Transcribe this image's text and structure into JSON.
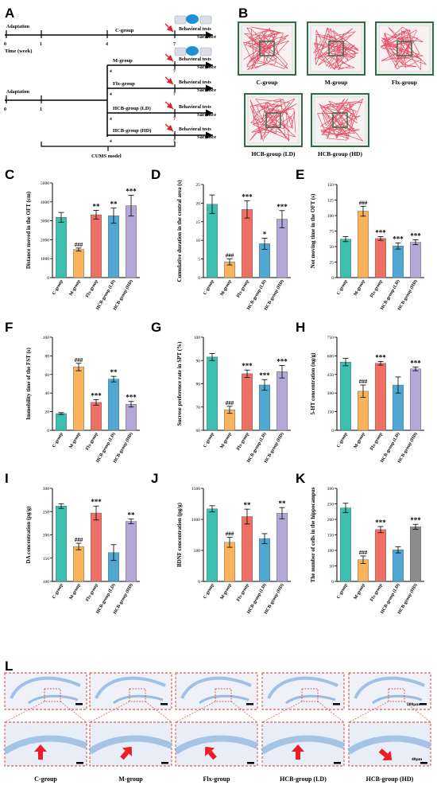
{
  "panels": {
    "A": "A",
    "B": "B",
    "C": "C",
    "D": "D",
    "E": "E",
    "F": "F",
    "G": "G",
    "H": "H",
    "I": "I",
    "J": "J",
    "K": "K",
    "L": "L"
  },
  "timeline": {
    "adaptation": "Adaptation",
    "time_label": "Time (week)",
    "ticks": {
      "t0": "0",
      "t1": "1",
      "t4": "4",
      "t7": "7"
    },
    "c_group": "C-group",
    "behavioral_tests": "Behavioral tests",
    "sacrifice": "Sacrifice",
    "groups": [
      "M-group",
      "Flx-group",
      "HCB-group (LD)",
      "HCB-group (HD)"
    ],
    "cums_model": "CUMS model"
  },
  "oft_tracks": {
    "labels": [
      "C-group",
      "M-group",
      "Flx-group",
      "HCB-group (LD)",
      "HCB-group (HD)"
    ]
  },
  "histology": {
    "labels": [
      "C-group",
      "M-group",
      "Flx-group",
      "HCB-group (LD)",
      "HCB-group (HD)"
    ],
    "scale_top": "200μm",
    "scale_bottom": "40μm"
  },
  "colors": {
    "teal": "#3cbfae",
    "orange": "#f9b35d",
    "red": "#ee6f66",
    "blue": "#4fa7d2",
    "purple": "#b3a8d8",
    "gray": "#8c8c8c",
    "track": "#e0304a",
    "frame": "#2f6b45",
    "histo": "#8fb4de"
  },
  "chart_data": [
    {
      "id": "C",
      "type": "bar",
      "ylabel": "Distance moved in the OFT (cm)",
      "ylim": [
        0,
        5000
      ],
      "yticks": [
        0,
        1000,
        2000,
        3000,
        4000,
        5000
      ],
      "categories": [
        "C-group",
        "M-group",
        "Flx-group",
        "HCB-group (LD)",
        "HCB-group (HD)"
      ],
      "values": [
        3180,
        1480,
        3320,
        3270,
        3800
      ],
      "errors": [
        260,
        80,
        230,
        400,
        550
      ],
      "annotations": [
        "",
        "###",
        "**",
        "**",
        "***"
      ],
      "colors": [
        "teal",
        "orange",
        "red",
        "blue",
        "purple"
      ]
    },
    {
      "id": "D",
      "type": "bar",
      "ylabel": "Cumulative duration in the central area (s)",
      "ylim": [
        0,
        25
      ],
      "yticks": [
        0,
        5,
        10,
        15,
        20,
        25
      ],
      "categories": [
        "C-group",
        "M-group",
        "Flx-group",
        "HCB-group (LD)",
        "HCB-group (HD)"
      ],
      "values": [
        19.7,
        4.2,
        18.3,
        9.1,
        15.7
      ],
      "errors": [
        2.5,
        0.8,
        2.3,
        1.5,
        2.3
      ],
      "annotations": [
        "",
        "###",
        "***",
        "*",
        "***"
      ],
      "colors": [
        "teal",
        "orange",
        "red",
        "blue",
        "purple"
      ]
    },
    {
      "id": "E",
      "type": "bar",
      "ylabel": "Not moving time in the OFT (s)",
      "ylim": [
        0,
        150
      ],
      "yticks": [
        0,
        25,
        50,
        75,
        100,
        125,
        150
      ],
      "categories": [
        "C-group",
        "M-group",
        "Flx-group",
        "HCB-group (LD)",
        "HCB-group (HD)"
      ],
      "values": [
        62,
        107,
        63,
        51,
        57
      ],
      "errors": [
        4,
        8,
        3,
        5,
        4
      ],
      "annotations": [
        "",
        "###",
        "***",
        "***",
        "***"
      ],
      "colors": [
        "teal",
        "orange",
        "red",
        "blue",
        "purple"
      ]
    },
    {
      "id": "F",
      "type": "bar",
      "ylabel": "Immobility time of the FST (s)",
      "ylim": [
        0,
        100
      ],
      "yticks": [
        0,
        20,
        40,
        60,
        80,
        100
      ],
      "categories": [
        "C-group",
        "M-group",
        "Flx-group",
        "HCB-group (LD)",
        "HCB-group (HD)"
      ],
      "values": [
        18,
        68,
        30,
        55,
        28
      ],
      "errors": [
        1,
        4,
        3,
        3,
        3
      ],
      "annotations": [
        "",
        "###",
        "***",
        "**",
        "***"
      ],
      "colors": [
        "teal",
        "orange",
        "red",
        "blue",
        "purple"
      ]
    },
    {
      "id": "G",
      "type": "bar",
      "ylabel": "Sucrose preference rate in SPT (%)",
      "ylim": [
        60,
        100
      ],
      "yticks": [
        60,
        70,
        80,
        90,
        100
      ],
      "categories": [
        "C-group",
        "M-group",
        "Flx-group",
        "HCB-group (LD)",
        "HCB-group (HD)"
      ],
      "values": [
        91.5,
        68.8,
        84.3,
        79.5,
        85.2
      ],
      "errors": [
        1.5,
        1.5,
        1.6,
        2.3,
        2.7
      ],
      "annotations": [
        "",
        "###",
        "***",
        "***",
        "***"
      ],
      "colors": [
        "teal",
        "orange",
        "red",
        "blue",
        "purple"
      ]
    },
    {
      "id": "H",
      "type": "bar",
      "ylabel": "5-HT concentration (ng/g)",
      "ylim": [
        0,
        750
      ],
      "yticks": [
        0,
        150,
        300,
        450,
        600,
        750
      ],
      "categories": [
        "C-group",
        "M-group",
        "Flx-group",
        "HCB-group (LD)",
        "HCB-group (HD)"
      ],
      "values": [
        550,
        315,
        540,
        365,
        495
      ],
      "errors": [
        30,
        50,
        15,
        65,
        15
      ],
      "annotations": [
        "",
        "###",
        "***",
        "",
        "***"
      ],
      "colors": [
        "teal",
        "orange",
        "red",
        "blue",
        "purple"
      ]
    },
    {
      "id": "I",
      "type": "bar",
      "ylabel": "DA concentration (pg/g)",
      "ylim": [
        100,
        300
      ],
      "yticks": [
        100,
        150,
        200,
        250,
        300
      ],
      "categories": [
        "C-group",
        "M-group",
        "Flx-group",
        "HCB-group (LD)",
        "HCB-group (HD)"
      ],
      "values": [
        262,
        175,
        247,
        162,
        229
      ],
      "errors": [
        5,
        7,
        15,
        17,
        5
      ],
      "annotations": [
        "",
        "###",
        "***",
        "",
        "**"
      ],
      "colors": [
        "teal",
        "orange",
        "red",
        "blue",
        "purple"
      ]
    },
    {
      "id": "J",
      "type": "bar",
      "ylabel": "BDNF concentration (pg/g)",
      "ylim": [
        0,
        1500
      ],
      "yticks": [
        0,
        500,
        1000,
        1500
      ],
      "categories": [
        "C-group",
        "M-group",
        "Flx-group",
        "HCB-group (LD)",
        "HCB-group (HD)"
      ],
      "values": [
        1170,
        630,
        1045,
        690,
        1100
      ],
      "errors": [
        50,
        80,
        120,
        80,
        90
      ],
      "annotations": [
        "",
        "###",
        "**",
        "",
        "**"
      ],
      "colors": [
        "teal",
        "orange",
        "red",
        "blue",
        "purple"
      ]
    },
    {
      "id": "K",
      "type": "bar",
      "ylabel": "The number of cells in the hippocampus",
      "ylim": [
        0,
        300
      ],
      "yticks": [
        0,
        50,
        100,
        150,
        200,
        250,
        300
      ],
      "categories": [
        "C-group",
        "M-group",
        "Flx-group",
        "HCB-group (LD)",
        "HCB-group (HD)"
      ],
      "values": [
        237,
        70,
        167,
        102,
        176
      ],
      "errors": [
        15,
        12,
        10,
        10,
        8
      ],
      "annotations": [
        "",
        "###",
        "***",
        "",
        "***"
      ],
      "colors": [
        "teal",
        "orange",
        "red",
        "blue",
        "gray"
      ]
    }
  ]
}
